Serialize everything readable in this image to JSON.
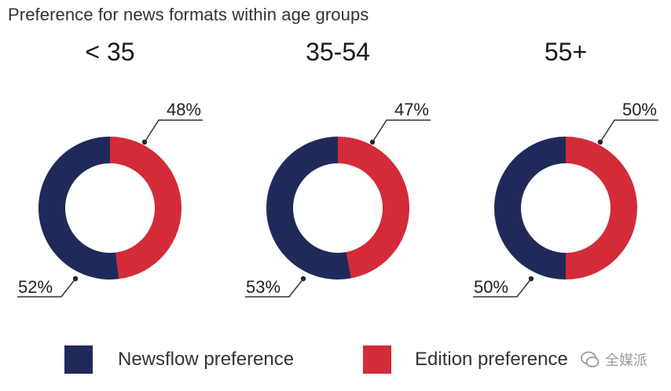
{
  "title": "Preference for news formats within age groups",
  "colors": {
    "newsflow": "#1f2a5a",
    "edition": "#d32b37"
  },
  "chart_data": {
    "type": "pie",
    "variant": "donut",
    "title": "Preference for news formats within age groups",
    "series": [
      {
        "name": "Newsflow preference"
      },
      {
        "name": "Edition preference"
      }
    ],
    "groups": [
      {
        "label": "< 35",
        "newsflow": 52,
        "edition": 48,
        "newsflow_label": "52%",
        "edition_label": "48%"
      },
      {
        "label": "35-54",
        "newsflow": 53,
        "edition": 47,
        "newsflow_label": "53%",
        "edition_label": "47%"
      },
      {
        "label": "55+",
        "newsflow": 50,
        "edition": 50,
        "newsflow_label": "50%",
        "edition_label": "50%"
      }
    ],
    "legend_placement": "bottom"
  },
  "legend": [
    {
      "label": "Newsflow preference"
    },
    {
      "label": "Edition preference"
    }
  ],
  "watermark": {
    "text": "全媒派"
  }
}
